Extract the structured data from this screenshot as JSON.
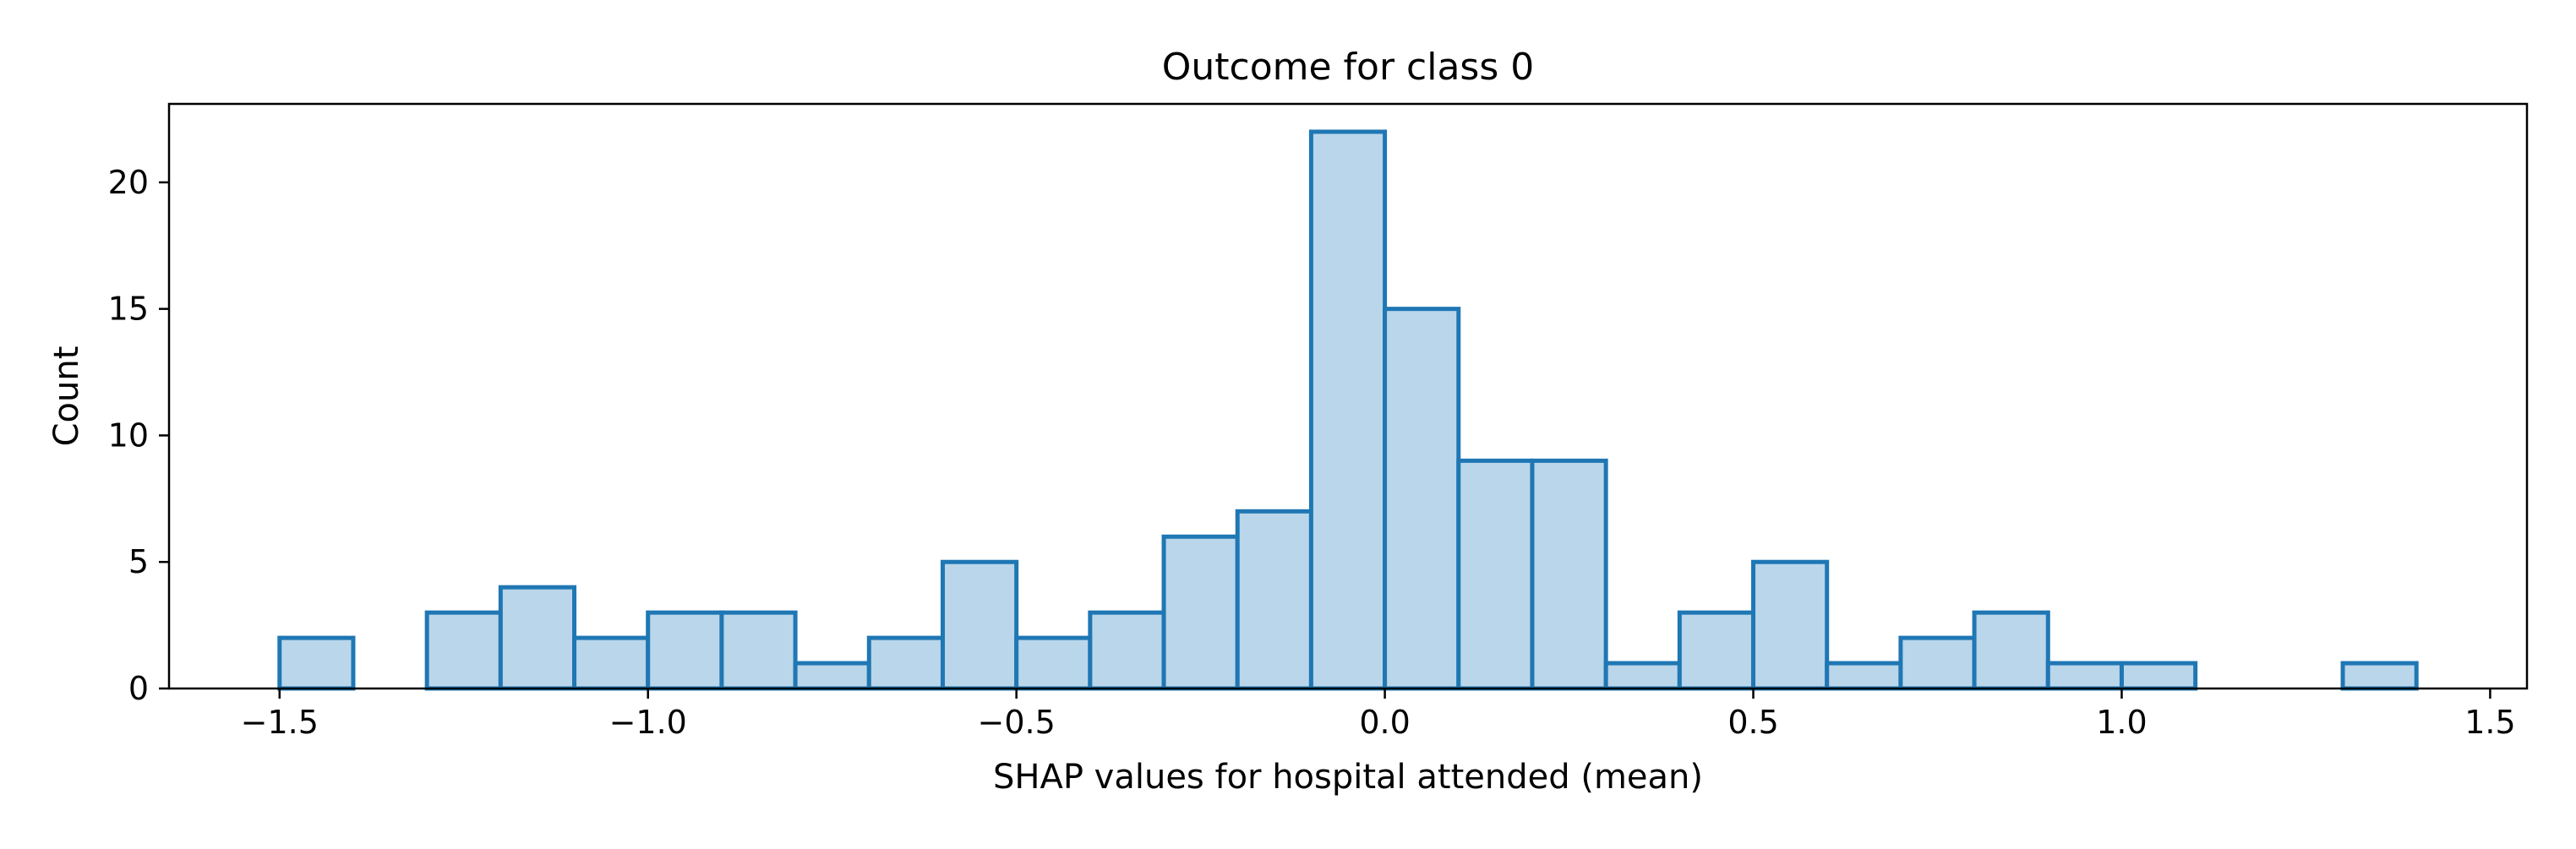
{
  "chart_data": {
    "type": "bar",
    "subtype": "histogram",
    "title": "Outcome for class 0",
    "xlabel": "SHAP values for hospital attended (mean)",
    "ylabel": "Count",
    "xlim": [
      -1.65,
      1.55
    ],
    "ylim": [
      0,
      23.1
    ],
    "xticks": [
      -1.5,
      -1.0,
      -0.5,
      0.0,
      0.5,
      1.0,
      1.5
    ],
    "xtick_labels": [
      "−1.5",
      "−1.0",
      "−0.5",
      "0.0",
      "0.5",
      "1.0",
      "1.5"
    ],
    "yticks": [
      0,
      5,
      10,
      15,
      20
    ],
    "ytick_labels": [
      "0",
      "5",
      "10",
      "15",
      "20"
    ],
    "grid": false,
    "bar_fill": "#bad6ea",
    "bar_edge": "#1f77b4",
    "bins": [
      {
        "x0": -1.5,
        "x1": -1.4,
        "count": 2
      },
      {
        "x0": -1.4,
        "x1": -1.3,
        "count": 0
      },
      {
        "x0": -1.3,
        "x1": -1.2,
        "count": 3
      },
      {
        "x0": -1.2,
        "x1": -1.1,
        "count": 4
      },
      {
        "x0": -1.1,
        "x1": -1.0,
        "count": 2
      },
      {
        "x0": -1.0,
        "x1": -0.9,
        "count": 3
      },
      {
        "x0": -0.9,
        "x1": -0.8,
        "count": 3
      },
      {
        "x0": -0.8,
        "x1": -0.7,
        "count": 1
      },
      {
        "x0": -0.7,
        "x1": -0.6,
        "count": 2
      },
      {
        "x0": -0.6,
        "x1": -0.5,
        "count": 5
      },
      {
        "x0": -0.5,
        "x1": -0.4,
        "count": 2
      },
      {
        "x0": -0.4,
        "x1": -0.3,
        "count": 3
      },
      {
        "x0": -0.3,
        "x1": -0.2,
        "count": 6
      },
      {
        "x0": -0.2,
        "x1": -0.1,
        "count": 7
      },
      {
        "x0": -0.1,
        "x1": 0.0,
        "count": 22
      },
      {
        "x0": 0.0,
        "x1": 0.1,
        "count": 15
      },
      {
        "x0": 0.1,
        "x1": 0.2,
        "count": 9
      },
      {
        "x0": 0.2,
        "x1": 0.3,
        "count": 9
      },
      {
        "x0": 0.3,
        "x1": 0.4,
        "count": 1
      },
      {
        "x0": 0.4,
        "x1": 0.5,
        "count": 3
      },
      {
        "x0": 0.5,
        "x1": 0.6,
        "count": 5
      },
      {
        "x0": 0.6,
        "x1": 0.7,
        "count": 1
      },
      {
        "x0": 0.7,
        "x1": 0.8,
        "count": 2
      },
      {
        "x0": 0.8,
        "x1": 0.9,
        "count": 3
      },
      {
        "x0": 0.9,
        "x1": 1.0,
        "count": 1
      },
      {
        "x0": 1.0,
        "x1": 1.1,
        "count": 1
      },
      {
        "x0": 1.1,
        "x1": 1.2,
        "count": 0
      },
      {
        "x0": 1.2,
        "x1": 1.3,
        "count": 0
      },
      {
        "x0": 1.3,
        "x1": 1.4,
        "count": 1
      }
    ]
  }
}
